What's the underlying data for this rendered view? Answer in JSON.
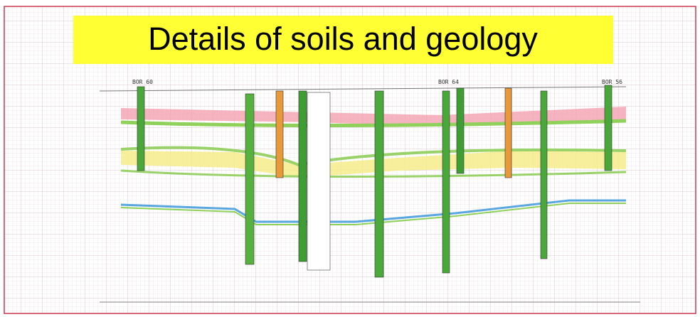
{
  "header": {
    "title": "Details of soils and geology"
  },
  "boreholes": [
    {
      "label": "BOR 60"
    },
    {
      "label": "BOR 64"
    },
    {
      "label": "BOR 56"
    }
  ]
}
